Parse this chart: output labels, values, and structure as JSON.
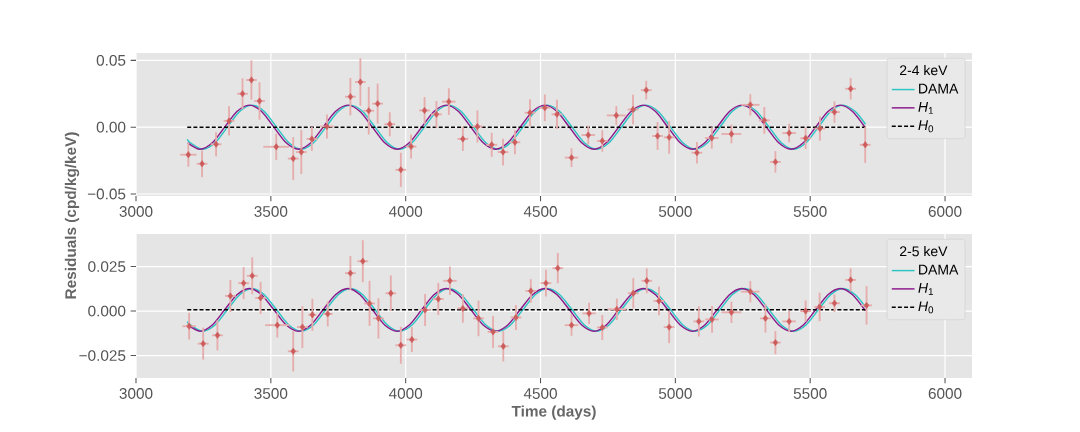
{
  "chart_data": [
    {
      "type": "line",
      "ylabel": "Residuals (cpd/kg/keV)",
      "legend": "top right",
      "legend_title": "2-4 keV",
      "grid": true,
      "xlim": [
        3000,
        6100
      ],
      "xticks": [
        3000,
        3500,
        4000,
        4500,
        5000,
        5500,
        6000
      ],
      "ylim": [
        -0.0515,
        0.0555
      ],
      "yticks": [
        {
          "value": -0.05,
          "label": "−0.05"
        },
        {
          "value": 0,
          "label": "0.00"
        },
        {
          "value": 0.05,
          "label": "0.05"
        }
      ],
      "series": [
        {
          "name": "DAMA",
          "color": "#2ec4c4",
          "x": [
            3190,
            3201.7,
            3247.4,
            3293,
            3338.7,
            3384.3,
            3430,
            3475.7,
            3521.3,
            3567,
            3612.6,
            3658.3,
            3703.9,
            3749.6,
            3795.2,
            3840.9,
            3886.6,
            3932.2,
            3977.9,
            4023.5,
            4069.2,
            4114.8,
            4160.5,
            4206.2,
            4251.8,
            4297.5,
            4343.1,
            4388.8,
            4434.4,
            4480.1,
            4525.7,
            4571.4,
            4617.1,
            4662.7,
            4708.4,
            4754,
            4799.7,
            4845.3,
            4891,
            4936.6,
            4982.3,
            5028,
            5073.6,
            5119.3,
            5164.9,
            5210.6,
            5256.2,
            5301.9,
            5347.6,
            5393.2,
            5438.9,
            5484.5,
            5530.2,
            5575.8,
            5621.5,
            5667.1,
            5705
          ],
          "values": [
            -0.0091,
            -0.0117,
            -0.0165,
            -0.0117,
            0,
            0.0117,
            0.0165,
            0.0117,
            0,
            -0.0117,
            -0.0165,
            -0.0117,
            0,
            0.0117,
            0.0165,
            0.0117,
            0,
            -0.0117,
            -0.0165,
            -0.0117,
            0,
            0.0117,
            0.0165,
            0.0117,
            0,
            -0.0117,
            -0.0165,
            -0.0117,
            0,
            0.0117,
            0.0165,
            0.0117,
            0,
            -0.0117,
            -0.0165,
            -0.0117,
            0,
            0.0117,
            0.0165,
            0.0117,
            0,
            -0.0117,
            -0.0165,
            -0.0117,
            0,
            0.0117,
            0.0165,
            0.0117,
            0,
            -0.0117,
            -0.0165,
            -0.0117,
            0,
            0.0117,
            0.0165,
            0.0117,
            0.0022
          ]
        },
        {
          "name": "*H*$_{1}$",
          "color": "#8b1a8b",
          "x": [
            3191.7,
            3237.4,
            3283,
            3328.7,
            3374.3,
            3420,
            3465.7,
            3511.3,
            3557,
            3602.6,
            3648.3,
            3693.9,
            3739.6,
            3785.2,
            3830.9,
            3876.6,
            3922.2,
            3967.9,
            4013.5,
            4059.2,
            4104.8,
            4150.5,
            4196.2,
            4241.8,
            4287.5,
            4333.1,
            4378.8,
            4424.4,
            4470.1,
            4515.7,
            4561.4,
            4607.1,
            4652.7,
            4698.4,
            4744,
            4789.7,
            4835.3,
            4881,
            4926.6,
            4972.3,
            5018,
            5063.6,
            5109.3,
            5154.9,
            5200.6,
            5246.2,
            5291.9,
            5337.6,
            5383.2,
            5428.9,
            5474.5,
            5520.2,
            5565.8,
            5611.5,
            5657.1,
            5705
          ],
          "values": [
            -0.0117,
            -0.0165,
            -0.0117,
            0,
            0.0117,
            0.0165,
            0.0117,
            0,
            -0.0117,
            -0.0165,
            -0.0117,
            0,
            0.0117,
            0.0165,
            0.0117,
            0,
            -0.0117,
            -0.0165,
            -0.0117,
            0,
            0.0117,
            0.0165,
            0.0117,
            0,
            -0.0117,
            -0.0165,
            -0.0117,
            0,
            0.0117,
            0.0165,
            0.0117,
            0,
            -0.0117,
            -0.0165,
            -0.0117,
            0,
            0.0117,
            0.0165,
            0.0117,
            0,
            -0.0117,
            -0.0165,
            -0.0117,
            0,
            0.0117,
            0.0165,
            0.0117,
            0,
            -0.0117,
            -0.0165,
            -0.0117,
            0,
            0.0117,
            0.0165,
            0.0117,
            -0.0006
          ]
        },
        {
          "name": "*H*$_{0}$",
          "color": "#000000",
          "line_style": "dashed",
          "x": [
            3190,
            5705
          ],
          "values": [
            0,
            0
          ]
        },
        {
          "type": "scatter",
          "color": "#cd5c5c",
          "marker": "diamond",
          "x": [
            3194,
            3245,
            3297,
            3345,
            3395,
            3428,
            3458,
            3520,
            3583,
            3613,
            3652,
            3708,
            3795,
            3832,
            3863,
            3896,
            3941,
            3982,
            4020,
            4070,
            4114,
            4160,
            4212,
            4266,
            4319,
            4361,
            4405,
            4461,
            4516,
            4561,
            4615,
            4677,
            4729,
            4781,
            4843,
            4892,
            4934,
            4977,
            5080,
            5135,
            5208,
            5278,
            5330,
            5371,
            5422,
            5483,
            5536,
            5590,
            5650,
            5704
          ],
          "values": [
            -0.0206,
            -0.0274,
            -0.0128,
            0.0047,
            0.025,
            0.0353,
            0.0196,
            -0.0147,
            -0.0235,
            -0.0186,
            -0.0088,
            0.0005,
            0.0228,
            0.0338,
            0.0123,
            0.0176,
            0.0022,
            -0.0319,
            -0.0145,
            0.0125,
            0.0096,
            0.0191,
            -0.0088,
            0.0005,
            -0.0132,
            -0.0186,
            -0.0113,
            0.0108,
            0.0145,
            0.0096,
            -0.0228,
            -0.0059,
            -0.0103,
            0.0088,
            0.0132,
            0.0277,
            -0.0066,
            -0.0076,
            -0.0191,
            -0.0081,
            -0.0051,
            0.0167,
            0.0051,
            -0.026,
            -0.0044,
            -0.0083,
            -0.001,
            0.0113,
            0.0287,
            -0.0132
          ],
          "errors": [
            0.009,
            0.01,
            0.009,
            0.011,
            0.0116,
            0.0147,
            0.014,
            0.0098,
            0.016,
            0.0165,
            0.009,
            0.009,
            0.014,
            0.0178,
            0.0178,
            0.015,
            0.009,
            0.0128,
            0.009,
            0.01,
            0.01,
            0.01,
            0.009,
            0.012,
            0.009,
            0.01,
            0.009,
            0.01,
            0.01,
            0.011,
            0.007,
            0.007,
            0.008,
            0.007,
            0.011,
            0.007,
            0.0104,
            0.0123,
            0.008,
            0.008,
            0.007,
            0.008,
            0.01,
            0.008,
            0.007,
            0.008,
            0.009,
            0.008,
            0.008,
            0.0135
          ],
          "xerrors": [
            30,
            20,
            20,
            20,
            20,
            20,
            20,
            48,
            20,
            20,
            20,
            25,
            20,
            20,
            20,
            20,
            20,
            20,
            20,
            20,
            20,
            25,
            20,
            20,
            20,
            20,
            20,
            20,
            20,
            20,
            25,
            25,
            20,
            35,
            20,
            20,
            20,
            20,
            20,
            25,
            37,
            34,
            20,
            20,
            25,
            20,
            20,
            20,
            20,
            20
          ]
        }
      ]
    },
    {
      "type": "line",
      "xlabel": "Time (days)",
      "legend": "top right",
      "legend_title": "2-5 keV",
      "grid": true,
      "xlim": [
        3000,
        6100
      ],
      "xticks": [
        3000,
        3500,
        4000,
        4500,
        5000,
        5500,
        6000
      ],
      "ylim": [
        -0.0376,
        0.0433
      ],
      "yticks": [
        {
          "value": -0.025,
          "label": "−0.025"
        },
        {
          "value": 0,
          "label": "0.000"
        },
        {
          "value": 0.025,
          "label": "0.025"
        }
      ],
      "series": [
        {
          "name": "DAMA",
          "color": "#2ec4c4",
          "x": [
            3190,
            3201.7,
            3247.4,
            3293,
            3338.7,
            3384.3,
            3430,
            3475.7,
            3521.3,
            3567,
            3612.6,
            3658.3,
            3703.9,
            3749.6,
            3795.2,
            3840.9,
            3886.6,
            3932.2,
            3977.9,
            4023.5,
            4069.2,
            4114.8,
            4160.5,
            4206.2,
            4251.8,
            4297.5,
            4343.1,
            4388.8,
            4434.4,
            4480.1,
            4525.7,
            4571.4,
            4617.1,
            4662.7,
            4708.4,
            4754,
            4799.7,
            4845.3,
            4891,
            4936.6,
            4982.3,
            5028,
            5073.6,
            5119.3,
            5164.9,
            5210.6,
            5256.2,
            5301.9,
            5347.6,
            5393.2,
            5438.9,
            5484.5,
            5530.2,
            5575.8,
            5621.5,
            5667.1,
            5705
          ],
          "values": [
            -0.0059,
            -0.0078,
            -0.0113,
            -0.0078,
            0.0007,
            0.0092,
            0.0127,
            0.0092,
            0.0007,
            -0.0078,
            -0.0113,
            -0.0078,
            0.0007,
            0.0092,
            0.0127,
            0.0092,
            0.0007,
            -0.0078,
            -0.0113,
            -0.0078,
            0.0007,
            0.0092,
            0.0127,
            0.0092,
            0.0007,
            -0.0078,
            -0.0113,
            -0.0078,
            0.0007,
            0.0092,
            0.0127,
            0.0092,
            0.0007,
            -0.0078,
            -0.0113,
            -0.0078,
            0.0007,
            0.0092,
            0.0127,
            0.0092,
            0.0007,
            -0.0078,
            -0.0113,
            -0.0078,
            0.0007,
            0.0092,
            0.0127,
            0.0092,
            0.0007,
            -0.0078,
            -0.0113,
            -0.0078,
            0.0007,
            0.0092,
            0.0127,
            0.0092,
            0.0023
          ]
        },
        {
          "name": "*H*$_{1}$",
          "color": "#8b1a8b",
          "x": [
            3191.7,
            3237.4,
            3283,
            3328.7,
            3374.3,
            3420,
            3465.7,
            3511.3,
            3557,
            3602.6,
            3648.3,
            3693.9,
            3739.6,
            3785.2,
            3830.9,
            3876.6,
            3922.2,
            3967.9,
            4013.5,
            4059.2,
            4104.8,
            4150.5,
            4196.2,
            4241.8,
            4287.5,
            4333.1,
            4378.8,
            4424.4,
            4470.1,
            4515.7,
            4561.4,
            4607.1,
            4652.7,
            4698.4,
            4744,
            4789.7,
            4835.3,
            4881,
            4926.6,
            4972.3,
            5018,
            5063.6,
            5109.3,
            5154.9,
            5200.6,
            5246.2,
            5291.9,
            5337.6,
            5383.2,
            5428.9,
            5474.5,
            5520.2,
            5565.8,
            5611.5,
            5657.1,
            5705
          ],
          "values": [
            -0.0078,
            -0.0113,
            -0.0078,
            0.0007,
            0.0092,
            0.0127,
            0.0092,
            0.0007,
            -0.0078,
            -0.0113,
            -0.0078,
            0.0007,
            0.0092,
            0.0127,
            0.0092,
            0.0007,
            -0.0078,
            -0.0113,
            -0.0078,
            0.0007,
            0.0092,
            0.0127,
            0.0092,
            0.0007,
            -0.0078,
            -0.0113,
            -0.0078,
            0.0007,
            0.0092,
            0.0127,
            0.0092,
            0.0007,
            -0.0078,
            -0.0113,
            -0.0078,
            0.0007,
            0.0092,
            0.0127,
            0.0092,
            0.0007,
            -0.0078,
            -0.0113,
            -0.0078,
            0.0007,
            0.0092,
            0.0127,
            0.0092,
            0.0007,
            -0.0078,
            -0.0113,
            -0.0078,
            0.0007,
            0.0092,
            0.0127,
            0.0092,
            0.0002
          ]
        },
        {
          "name": "*H*$_{0}$",
          "color": "#000000",
          "line_style": "dashed",
          "x": [
            3190,
            5705
          ],
          "values": [
            0.0007,
            0.0007
          ]
        },
        {
          "type": "scatter",
          "color": "#cd5c5c",
          "marker": "diamond",
          "x": [
            3197,
            3249,
            3302,
            3350,
            3399,
            3431,
            3462,
            3524,
            3583,
            3617,
            3654,
            3711,
            3795,
            3841,
            3866,
            3899,
            3945,
            3982,
            4023,
            4072,
            4121,
            4164,
            4212,
            4270,
            4324,
            4362,
            4409,
            4464,
            4520,
            4564,
            4615,
            4680,
            4729,
            4783,
            4844,
            4894,
            4939,
            4977,
            5087,
            5136,
            5208,
            5278,
            5334,
            5371,
            5422,
            5483,
            5535,
            5590,
            5650,
            5709
          ],
          "values": [
            -0.0085,
            -0.0183,
            -0.0136,
            0.0085,
            0.0157,
            0.0198,
            0.0074,
            -0.0079,
            -0.0226,
            -0.009,
            -0.0021,
            -0.0016,
            0.0213,
            0.028,
            0.0043,
            -0.0041,
            0.01,
            -0.0192,
            -0.016,
            0.0006,
            0.0068,
            0.017,
            0.0015,
            -0.0041,
            -0.0117,
            -0.0198,
            -0.0036,
            0.0113,
            0.0157,
            0.0241,
            -0.0079,
            -0.0013,
            -0.0092,
            0.001,
            0.01,
            0.017,
            0.0057,
            -0.009,
            -0.0058,
            -0.0047,
            -0.0007,
            0.0109,
            -0.0041,
            -0.0177,
            -0.0058,
            0,
            0.0023,
            0.0044,
            0.0175,
            0.0032
          ],
          "errors": [
            0.0075,
            0.009,
            0.0085,
            0.009,
            0.009,
            0.0104,
            0.009,
            0.007,
            0.0113,
            0.0118,
            0.009,
            0.007,
            0.0096,
            0.0118,
            0.0127,
            0.0113,
            0.01,
            0.0104,
            0.007,
            0.009,
            0.009,
            0.008,
            0.008,
            0.01,
            0.009,
            0.0085,
            0.007,
            0.0066,
            0.0075,
            0.0085,
            0.006,
            0.006,
            0.007,
            0.006,
            0.0085,
            0.007,
            0.008,
            0.009,
            0.0085,
            0.0075,
            0.006,
            0.006,
            0.008,
            0.0065,
            0.006,
            0.006,
            0.008,
            0.005,
            0.0065,
            0.0108
          ],
          "xerrors": [
            25,
            20,
            20,
            20,
            20,
            20,
            20,
            45,
            20,
            20,
            15,
            18,
            20,
            20,
            20,
            20,
            20,
            20,
            20,
            20,
            20,
            25,
            20,
            20,
            20,
            20,
            20,
            20,
            20,
            20,
            25,
            25,
            20,
            35,
            20,
            20,
            20,
            20,
            20,
            25,
            37,
            34,
            20,
            20,
            25,
            20,
            20,
            20,
            20,
            20
          ]
        }
      ]
    }
  ]
}
